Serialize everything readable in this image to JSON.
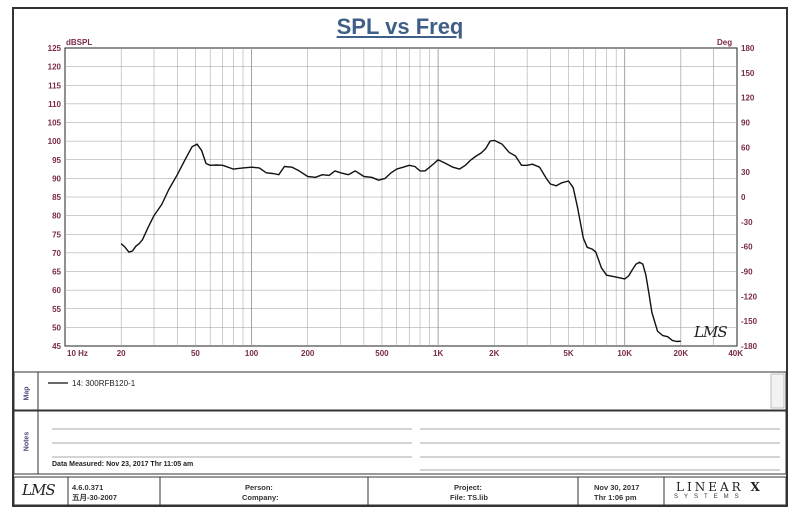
{
  "chart_data": {
    "type": "line",
    "title": "SPL vs Freq",
    "ylabel_left": "dBSPL",
    "ylabel_right": "Deg",
    "x_scale": "log",
    "xlim": [
      10,
      40000
    ],
    "ylim": [
      45,
      125
    ],
    "ylim_right": [
      -180,
      180
    ],
    "grid": true,
    "x_tick_labels": [
      "10 Hz",
      "20",
      "50",
      "100",
      "200",
      "500",
      "1K",
      "2K",
      "5K",
      "10K",
      "20K",
      "40K"
    ],
    "x_tick_values": [
      10,
      20,
      50,
      100,
      200,
      500,
      1000,
      2000,
      5000,
      10000,
      20000,
      40000
    ],
    "y_ticks": [
      45,
      50,
      55,
      60,
      65,
      70,
      75,
      80,
      85,
      90,
      95,
      100,
      105,
      110,
      115,
      120,
      125
    ],
    "y_right_ticks": [
      -180,
      -150,
      -120,
      -90,
      -60,
      -30,
      0,
      30,
      60,
      90,
      120,
      150,
      180
    ],
    "series": [
      {
        "name": "14: 300RFB120-1",
        "color": "#111111",
        "x": [
          20,
          21,
          22,
          23,
          24,
          25,
          26,
          28,
          30,
          33,
          36,
          40,
          44,
          48,
          51,
          54,
          57,
          60,
          65,
          70,
          80,
          90,
          100,
          110,
          120,
          130,
          140,
          150,
          165,
          180,
          200,
          220,
          240,
          260,
          280,
          300,
          330,
          360,
          400,
          440,
          480,
          520,
          560,
          600,
          650,
          700,
          750,
          800,
          850,
          900,
          950,
          1000,
          1100,
          1200,
          1300,
          1400,
          1500,
          1600,
          1700,
          1800,
          1900,
          2000,
          2200,
          2400,
          2600,
          2800,
          3000,
          3200,
          3500,
          3800,
          4000,
          4300,
          4600,
          5000,
          5300,
          5600,
          6000,
          6300,
          6700,
          7000,
          7500,
          8000,
          9000,
          10000,
          10500,
          11000,
          11500,
          12000,
          12500,
          13000,
          13500,
          14000,
          15000,
          16000,
          17000,
          18000,
          19000,
          20000
        ],
        "y": [
          72.5,
          71.5,
          70.2,
          70.5,
          71.8,
          72.5,
          73.5,
          77,
          80,
          83,
          87,
          91,
          95,
          98.5,
          99.2,
          97.5,
          94,
          93.5,
          93.6,
          93.5,
          92.5,
          92.8,
          93,
          92.8,
          91.5,
          91.3,
          91,
          93.2,
          93,
          92,
          90.5,
          90.3,
          91,
          90.8,
          92,
          91.5,
          91,
          92,
          90.5,
          90.3,
          89.5,
          90,
          91.5,
          92.5,
          93,
          93.5,
          93.2,
          92,
          92,
          93,
          94,
          95,
          94,
          93,
          92.5,
          93.5,
          95,
          96,
          96.8,
          98,
          100,
          100.2,
          99.2,
          97,
          96,
          93.5,
          93.5,
          93.8,
          93,
          90,
          88.5,
          88,
          88.8,
          89.3,
          87.5,
          82,
          74,
          71.5,
          71,
          70.2,
          66,
          64,
          63.5,
          63,
          63.8,
          65.5,
          67,
          67.5,
          67,
          64,
          59,
          54,
          49,
          47.8,
          47.5,
          46.5,
          46.2,
          46.3
        ]
      }
    ]
  },
  "labels": {
    "lms_signature": "LMS",
    "map_label": "Map",
    "notes_label": "Notes",
    "legend_entry": "14: 300RFB120-1",
    "date_measured": "Data Measured: Nov 23, 2017  Thr  11:05 am"
  },
  "footer": {
    "logo": "LMS",
    "version": "4.6.0.371",
    "version_date": "五月-30-2007",
    "person": "Person:",
    "company": "Company:",
    "project": "Project:",
    "file": "File: TS.lib",
    "date": "Nov 30, 2017",
    "time": "Thr  1:06 pm",
    "brand": "LINEAR",
    "brand_x": "X",
    "brand_sub": "SYSTEMS"
  },
  "colors": {
    "title": "#3f5f86",
    "axis_text": "#7a2a4a",
    "grid": "#999999",
    "curve": "#111111"
  }
}
